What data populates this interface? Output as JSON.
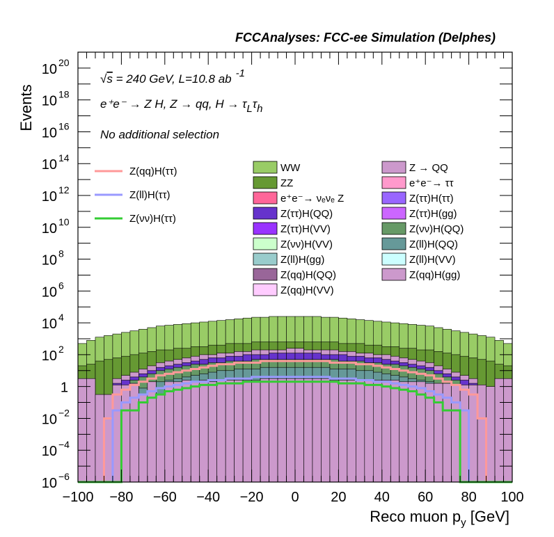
{
  "header": "FCCAnalyses: FCC-ee Simulation (Delphes)",
  "annotations": {
    "energy_pre": "√",
    "energy_s": "s",
    "energy_main": " = 240 GeV, L=10.8 ab",
    "energy_sup": "-1",
    "process": "e⁺e⁻ → Z H, Z → qq, H → τ",
    "process_sub1": "L",
    "process_tau": "τ",
    "process_sub2": "h",
    "selection": "No additional selection"
  },
  "chart_data": {
    "type": "bar",
    "stacked": true,
    "ylog": true,
    "title": "",
    "xlabel": "Reco muon p",
    "xlabel_sub": "y",
    "xlabel_unit": " [GeV]",
    "ylabel": "Events",
    "xlim": [
      -100,
      100
    ],
    "ylim": [
      1e-06,
      1e+21
    ],
    "x_ticks": [
      -100,
      -80,
      -60,
      -40,
      -20,
      0,
      20,
      40,
      60,
      80,
      100
    ],
    "x_tick_labels": [
      "−100",
      "−80",
      "−60",
      "−40",
      "−20",
      "0",
      "20",
      "40",
      "60",
      "80",
      "100"
    ],
    "y_ticks": [
      {
        "exp": -6,
        "label": "10",
        "sup": "−6"
      },
      {
        "exp": -4,
        "label": "10",
        "sup": "−4"
      },
      {
        "exp": -2,
        "label": "10",
        "sup": "−2"
      },
      {
        "exp": 0,
        "label": "1",
        "sup": ""
      },
      {
        "exp": 2,
        "label": "10",
        "sup": "2"
      },
      {
        "exp": 4,
        "label": "10",
        "sup": "4"
      },
      {
        "exp": 6,
        "label": "10",
        "sup": "6"
      },
      {
        "exp": 8,
        "label": "10",
        "sup": "8"
      },
      {
        "exp": 10,
        "label": "10",
        "sup": "10"
      },
      {
        "exp": 12,
        "label": "10",
        "sup": "12"
      },
      {
        "exp": 14,
        "label": "10",
        "sup": "14"
      },
      {
        "exp": 16,
        "label": "10",
        "sup": "16"
      },
      {
        "exp": 18,
        "label": "10",
        "sup": "18"
      },
      {
        "exp": 20,
        "label": "10",
        "sup": "20"
      }
    ],
    "bin_edges_start": -100,
    "bin_width": 4,
    "n_bins": 50,
    "stack_bands": [
      {
        "name": "Z(qq)H(gg)",
        "color": "#cc99cc",
        "log10_top": [
          0.5,
          0.5,
          -0.5,
          -0.5,
          0.1,
          0.1,
          0.2,
          -0.5,
          0.3,
          -0.5,
          0.3,
          0.3,
          0.4,
          0.3,
          0.4,
          0.3,
          0.4,
          0.4,
          0.4,
          0.4,
          0.4,
          0.5,
          0.5,
          0.5,
          0.5,
          0.5,
          0.5,
          0.5,
          0.5,
          0.4,
          0.4,
          0.4,
          0.4,
          0.4,
          0.4,
          0.4,
          0.4,
          0.3,
          0.3,
          0.3,
          0.2,
          0.2,
          0.2,
          0.1,
          0.1,
          0.1,
          0.1,
          0,
          0.5,
          0.5
        ]
      },
      {
        "name": "Z(ll)H(gg)",
        "color": "#99cccc",
        "log10_top": [
          -6,
          -6,
          -6,
          -6,
          -2.2,
          -2,
          -1.8,
          -1.6,
          -1.5,
          -1.4,
          -1.3,
          -1.2,
          -1.1,
          -1.0,
          -0.9,
          -0.8,
          -0.7,
          -0.6,
          -0.5,
          -0.5,
          -0.5,
          -0.4,
          -0.4,
          -0.4,
          -0.4,
          -0.4,
          -0.4,
          -0.4,
          -0.4,
          -0.5,
          -0.5,
          -0.5,
          -0.6,
          -0.7,
          -0.8,
          -0.9,
          -1.0,
          -1.1,
          -1.2,
          -1.3,
          -1.4,
          -1.5,
          -1.6,
          -1.8,
          -2,
          -2.2,
          -6,
          -6,
          -6,
          -6
        ]
      },
      {
        "name": "e⁺e⁻→ νₑνₑ Z",
        "color": "#ff6699",
        "log10_top": [
          -6,
          -6,
          -6,
          -6,
          -6,
          -6,
          -6,
          -6,
          -6,
          -6,
          -6,
          -6,
          -6,
          -6,
          -6,
          -1.5,
          -1.0,
          -0.7,
          -0.5,
          -0.3,
          -0.2,
          -0.1,
          0,
          0.1,
          0.2,
          0.2,
          0.1,
          0,
          -0.1,
          -0.2,
          -0.3,
          -0.5,
          -0.7,
          -1.0,
          -1.5,
          -6,
          -6,
          -6,
          -6,
          -6,
          -6,
          -6,
          -6,
          -6,
          -6,
          -6,
          -6,
          -6,
          -6,
          -6
        ]
      },
      {
        "name": "Z(ll)H(QQ)",
        "color": "#669999",
        "log10_top": [
          -6,
          -6,
          -6,
          -6,
          -0.8,
          -0.5,
          -0.3,
          -0.1,
          0.1,
          0.3,
          0.4,
          0.5,
          0.6,
          0.7,
          0.8,
          0.9,
          1.0,
          1.0,
          1.1,
          1.1,
          1.1,
          1.2,
          1.2,
          1.2,
          1.2,
          1.2,
          1.2,
          1.2,
          1.2,
          1.1,
          1.1,
          1.1,
          1.0,
          1.0,
          0.9,
          0.8,
          0.7,
          0.6,
          0.5,
          0.4,
          0.3,
          0.1,
          -0.1,
          -0.3,
          -0.5,
          -0.8,
          -6,
          -6,
          -6,
          -6
        ]
      },
      {
        "name": "Z(νν)H(QQ)",
        "color": "#669966",
        "log10_top": [
          -6,
          -6,
          -6,
          -6,
          -6,
          -6,
          0.4,
          0.6,
          0.8,
          1.0,
          1.1,
          1.2,
          1.3,
          1.4,
          1.4,
          1.5,
          1.5,
          1.6,
          1.6,
          1.6,
          1.7,
          1.7,
          1.7,
          1.7,
          1.7,
          1.7,
          1.7,
          1.7,
          1.7,
          1.7,
          1.6,
          1.6,
          1.6,
          1.5,
          1.5,
          1.4,
          1.4,
          1.3,
          1.2,
          1.1,
          1.0,
          0.8,
          0.6,
          0.4,
          -6,
          -6,
          -6,
          -6,
          -6,
          -6
        ]
      },
      {
        "name": "Z(ττ)H(QQ)",
        "color": "#6633cc",
        "log10_top": [
          -6,
          -6,
          -6,
          -6,
          0.2,
          0.4,
          0.6,
          0.8,
          1.0,
          1.2,
          1.3,
          1.4,
          1.5,
          1.6,
          1.7,
          1.8,
          1.8,
          1.9,
          1.9,
          2.0,
          2.0,
          2.0,
          2.1,
          2.1,
          2.1,
          2.1,
          2.1,
          2.1,
          2.0,
          2.0,
          2.0,
          1.9,
          1.9,
          1.8,
          1.8,
          1.7,
          1.6,
          1.5,
          1.4,
          1.3,
          1.2,
          1.0,
          0.8,
          0.6,
          0.4,
          0.2,
          -6,
          -6,
          -6,
          -6
        ]
      },
      {
        "name": "Z → QQ",
        "color": "#cc99cc",
        "log10_top": [
          -6,
          -6,
          -6,
          -6,
          0.5,
          0.7,
          0.9,
          1.1,
          1.3,
          1.5,
          1.6,
          1.7,
          1.8,
          1.9,
          2.0,
          2.0,
          2.1,
          2.1,
          2.2,
          2.2,
          2.3,
          2.3,
          2.3,
          2.3,
          2.4,
          2.4,
          2.3,
          2.3,
          2.3,
          2.3,
          2.2,
          2.2,
          2.1,
          2.1,
          2.0,
          2.0,
          1.9,
          1.8,
          1.7,
          1.6,
          1.5,
          1.3,
          1.1,
          0.9,
          0.7,
          0.5,
          -6,
          -6,
          -6,
          -6
        ]
      },
      {
        "name": "ZZ",
        "color": "#669933",
        "log10_top": [
          1.3,
          1.4,
          1.6,
          1.7,
          1.8,
          1.9,
          2.0,
          2.1,
          2.2,
          2.3,
          2.3,
          2.4,
          2.4,
          2.5,
          2.5,
          2.6,
          2.6,
          2.7,
          2.7,
          2.7,
          2.8,
          2.8,
          2.8,
          2.8,
          2.8,
          2.8,
          2.8,
          2.8,
          2.8,
          2.8,
          2.7,
          2.7,
          2.7,
          2.6,
          2.6,
          2.5,
          2.5,
          2.4,
          2.4,
          2.3,
          2.3,
          2.2,
          2.1,
          2.0,
          1.9,
          1.8,
          1.7,
          1.6,
          1.4,
          1.3
        ]
      },
      {
        "name": "WW",
        "color": "#99cc66",
        "log10_top": [
          2.7,
          2.9,
          3.1,
          3.2,
          3.3,
          3.4,
          3.5,
          3.6,
          3.7,
          3.8,
          3.85,
          3.9,
          3.95,
          4.0,
          4.05,
          4.1,
          4.15,
          4.2,
          4.25,
          4.3,
          4.35,
          4.35,
          4.4,
          4.4,
          4.4,
          4.4,
          4.4,
          4.4,
          4.35,
          4.35,
          4.3,
          4.25,
          4.2,
          4.15,
          4.1,
          4.05,
          4.0,
          3.95,
          3.9,
          3.85,
          3.8,
          3.7,
          3.6,
          3.5,
          3.4,
          3.3,
          3.2,
          3.1,
          2.9,
          2.7
        ]
      }
    ],
    "line_series": [
      {
        "name": "Z(qq)H(ττ)",
        "color": "#ff9999",
        "log10": [
          -6,
          -6,
          -6,
          -2,
          -0.5,
          -0.2,
          0.1,
          0.3,
          0.5,
          0.7,
          0.8,
          0.9,
          1.0,
          1.1,
          1.2,
          1.3,
          1.4,
          1.4,
          1.5,
          1.5,
          1.5,
          1.6,
          1.6,
          1.6,
          1.6,
          1.6,
          1.6,
          1.6,
          1.6,
          1.5,
          1.5,
          1.5,
          1.4,
          1.4,
          1.3,
          1.2,
          1.1,
          1.0,
          0.9,
          0.8,
          0.7,
          0.5,
          0.3,
          0.1,
          -0.2,
          -0.5,
          -2,
          -6,
          -6,
          -6
        ]
      },
      {
        "name": "Z(ll)H(ττ)",
        "color": "#9999ff",
        "log10": [
          -6,
          -6,
          -6,
          -6,
          -1.5,
          -1.0,
          -0.7,
          -0.5,
          -0.3,
          -0.1,
          0,
          0.1,
          0.2,
          0.3,
          0.3,
          0.4,
          0.4,
          0.5,
          0.5,
          0.5,
          0.6,
          0.6,
          0.6,
          0.6,
          0.6,
          0.6,
          0.6,
          0.6,
          0.6,
          0.5,
          0.5,
          0.5,
          0.4,
          0.4,
          0.3,
          0.3,
          0.2,
          0.1,
          0,
          -0.1,
          -0.3,
          -0.5,
          -0.7,
          -1.0,
          -1.5,
          -6,
          -6,
          -6,
          -6,
          -6
        ]
      },
      {
        "name": "Z(νν)H(ττ)",
        "color": "#33cc33",
        "log10": [
          -6,
          -6,
          -6,
          -6,
          -6,
          -1.5,
          -1.5,
          -1.0,
          -0.7,
          -0.5,
          -0.3,
          -0.2,
          -0.1,
          0,
          0.1,
          0.1,
          0.2,
          0.2,
          0.2,
          0.3,
          0.3,
          0.3,
          0.3,
          0.3,
          0.3,
          0.3,
          0.3,
          0.3,
          0.3,
          0.3,
          0.2,
          0.2,
          0.2,
          0.1,
          0.1,
          0,
          -0.1,
          -0.2,
          -0.3,
          -0.5,
          -0.7,
          -1.0,
          -1.5,
          -1.5,
          -6,
          -6,
          -6,
          -6,
          -6,
          -6
        ]
      }
    ],
    "legend_lines": [
      {
        "name": "Z(qq)H(ττ)",
        "color": "#ff9999"
      },
      {
        "name": "Z(ll)H(ττ)",
        "color": "#9999ff"
      },
      {
        "name": "Z(νν)H(ττ)",
        "color": "#33cc33"
      }
    ],
    "legend_col1": [
      {
        "name": "WW",
        "color": "#99cc66"
      },
      {
        "name": "ZZ",
        "color": "#669933"
      },
      {
        "name": "e⁺e⁻→ νₑνₑ Z",
        "color": "#ff6699"
      },
      {
        "name": "Z(ττ)H(QQ)",
        "color": "#6633cc"
      },
      {
        "name": "Z(ττ)H(VV)",
        "color": "#9933ff"
      },
      {
        "name": "Z(νν)H(VV)",
        "color": "#ccffcc"
      },
      {
        "name": "Z(ll)H(gg)",
        "color": "#99cccc"
      },
      {
        "name": "Z(qq)H(QQ)",
        "color": "#996699"
      },
      {
        "name": "Z(qq)H(VV)",
        "color": "#ffccff"
      }
    ],
    "legend_col2": [
      {
        "name": "Z → QQ",
        "color": "#cc99cc"
      },
      {
        "name": "e⁺e⁻→ ττ",
        "color": "#ff99cc"
      },
      {
        "name": "Z(ττ)H(ττ)",
        "color": "#9966ff"
      },
      {
        "name": "Z(ττ)H(gg)",
        "color": "#cc66ff"
      },
      {
        "name": "Z(νν)H(QQ)",
        "color": "#669966"
      },
      {
        "name": "Z(ll)H(QQ)",
        "color": "#669999"
      },
      {
        "name": "Z(ll)H(VV)",
        "color": "#ccffff"
      },
      {
        "name": "Z(qq)H(gg)",
        "color": "#cc99cc"
      }
    ],
    "legend_placement": "top",
    "grid": false
  }
}
